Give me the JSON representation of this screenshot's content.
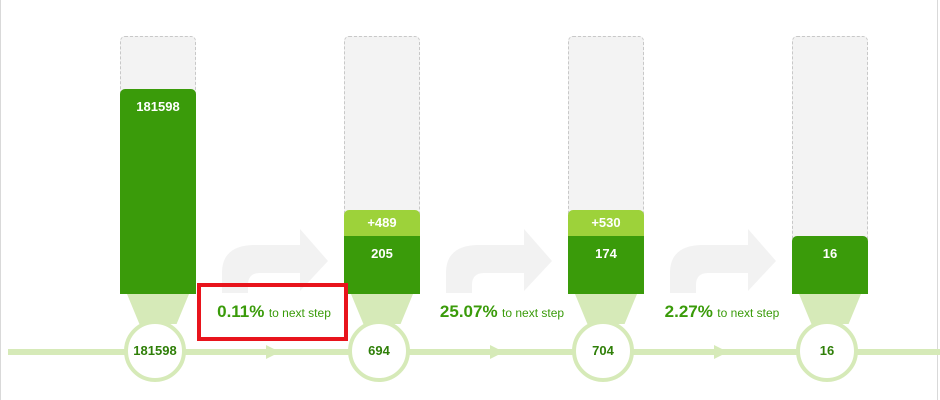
{
  "steps": [
    {
      "bar_value": "181598",
      "added": "",
      "node_value": "181598",
      "fill_fraction": 0.79
    },
    {
      "bar_value": "205",
      "added": "+489",
      "node_value": "694",
      "fill_fraction": 0.23
    },
    {
      "bar_value": "174",
      "added": "+530",
      "node_value": "704",
      "fill_fraction": 0.23
    },
    {
      "bar_value": "16",
      "added": "",
      "node_value": "16",
      "fill_fraction": 0.23
    }
  ],
  "conversions": [
    {
      "percent": "0.11%",
      "label": "to next step"
    },
    {
      "percent": "25.07%",
      "label": "to next step"
    },
    {
      "percent": "2.27%",
      "label": "to next step"
    }
  ],
  "colors": {
    "bar": "#3a9b0a",
    "added": "#9dd23a",
    "track": "#f3f3f3",
    "flow": "#d6eab8",
    "highlight": "#e8141c"
  },
  "icons": [
    "funnel-step-arrow-icon",
    "flow-arrow-icon"
  ]
}
